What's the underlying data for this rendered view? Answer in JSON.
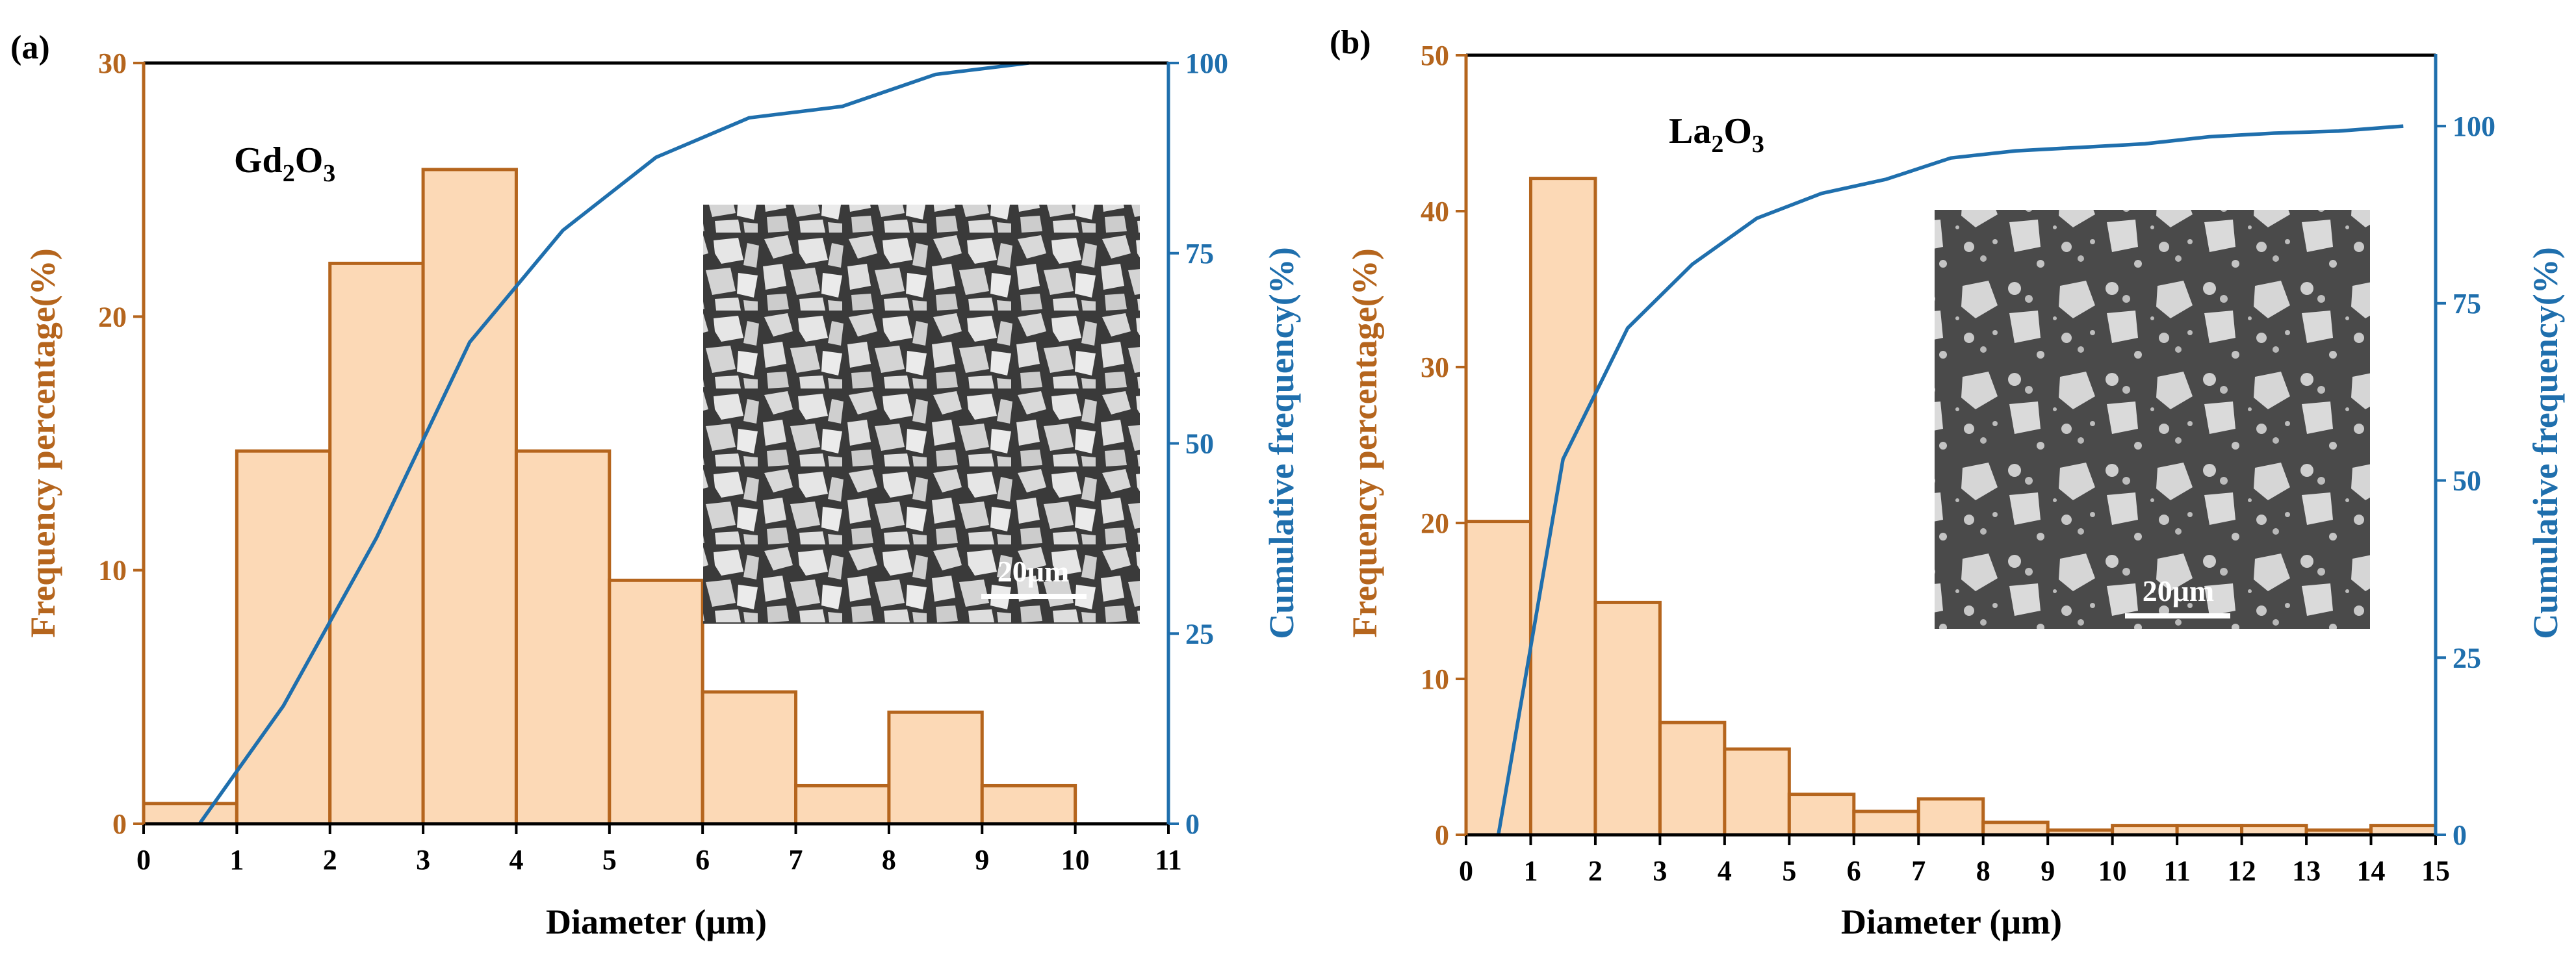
{
  "colors": {
    "left_axis": "#b5651d",
    "right_axis": "#1f6fad",
    "bar_fill": "#fcd9b6",
    "black": "#000000"
  },
  "chart_data": [
    {
      "type": "bar",
      "panel_label": "(a)",
      "sample_label": {
        "base": "Gd",
        "sub1": "2",
        "mid": "O",
        "sub2": "3"
      },
      "xlabel": "Diameter (μm)",
      "ylabel": "Frequency percentage(%)",
      "y2label": "Cumulative frequency(%)",
      "xlim": [
        0,
        11
      ],
      "ylim": [
        0,
        30
      ],
      "y2lim": [
        0,
        100
      ],
      "xticks": [
        "0",
        "1",
        "2",
        "3",
        "4",
        "5",
        "6",
        "7",
        "8",
        "9",
        "10",
        "11"
      ],
      "yticks": [
        "0",
        "10",
        "20",
        "30"
      ],
      "y2ticks": [
        "0",
        "25",
        "50",
        "75",
        "100"
      ],
      "bins": [
        [
          0,
          1
        ],
        [
          1,
          2
        ],
        [
          2,
          3
        ],
        [
          3,
          4
        ],
        [
          4,
          5
        ],
        [
          5,
          6
        ],
        [
          6,
          7
        ],
        [
          7,
          8
        ],
        [
          8,
          9
        ],
        [
          9,
          10
        ]
      ],
      "values": [
        0.8,
        14.7,
        22.1,
        25.8,
        14.7,
        9.6,
        5.2,
        1.5,
        4.4,
        1.5
      ],
      "cumulative": {
        "name": "Cumulative frequency",
        "x": [
          0.6,
          1.5,
          2.5,
          3.5,
          4.5,
          5.5,
          6.5,
          7.5,
          8.5,
          9.5
        ],
        "y": [
          0,
          15.5,
          37.6,
          63.3,
          78.0,
          87.6,
          92.8,
          94.3,
          98.5,
          100.0
        ]
      },
      "inset": {
        "type": "SEM micrograph",
        "scale_bar": "20μm"
      }
    },
    {
      "type": "bar",
      "panel_label": "(b)",
      "sample_label": {
        "base": "La",
        "sub1": "2",
        "mid": "O",
        "sub2": "3"
      },
      "xlabel": "Diameter (μm)",
      "ylabel": "Frequency percentage(%)",
      "y2label": "Cumulative frequency(%)",
      "xlim": [
        0,
        15
      ],
      "ylim": [
        0,
        50
      ],
      "y2lim": [
        0,
        110
      ],
      "xticks": [
        "0",
        "1",
        "2",
        "3",
        "4",
        "5",
        "6",
        "7",
        "8",
        "9",
        "10",
        "11",
        "12",
        "13",
        "14",
        "15"
      ],
      "yticks": [
        "0",
        "10",
        "20",
        "30",
        "40",
        "50"
      ],
      "y2ticks": [
        "0",
        "25",
        "50",
        "75",
        "100"
      ],
      "bins": [
        [
          0,
          1
        ],
        [
          1,
          2
        ],
        [
          2,
          3
        ],
        [
          3,
          4
        ],
        [
          4,
          5
        ],
        [
          5,
          6
        ],
        [
          6,
          7
        ],
        [
          7,
          8
        ],
        [
          8,
          9
        ],
        [
          9,
          10
        ],
        [
          10,
          11
        ],
        [
          11,
          12
        ],
        [
          12,
          13
        ],
        [
          13,
          14
        ],
        [
          14,
          15
        ]
      ],
      "values": [
        20.1,
        42.1,
        14.9,
        7.2,
        5.5,
        2.6,
        1.5,
        2.3,
        0.8,
        0.3,
        0.6,
        0.6,
        0.6,
        0.3,
        0.6
      ],
      "cumulative": {
        "name": "Cumulative frequency",
        "x": [
          0.5,
          1.5,
          2.5,
          3.5,
          4.5,
          5.5,
          6.5,
          7.5,
          8.5,
          9.5,
          10.5,
          11.5,
          12.5,
          13.5,
          14.5
        ],
        "y": [
          0,
          53.0,
          71.5,
          80.5,
          87.0,
          90.5,
          92.5,
          95.5,
          96.5,
          97.0,
          97.5,
          98.5,
          99.0,
          99.3,
          100.0
        ]
      },
      "inset": {
        "type": "SEM micrograph",
        "scale_bar": "20μm"
      }
    }
  ]
}
